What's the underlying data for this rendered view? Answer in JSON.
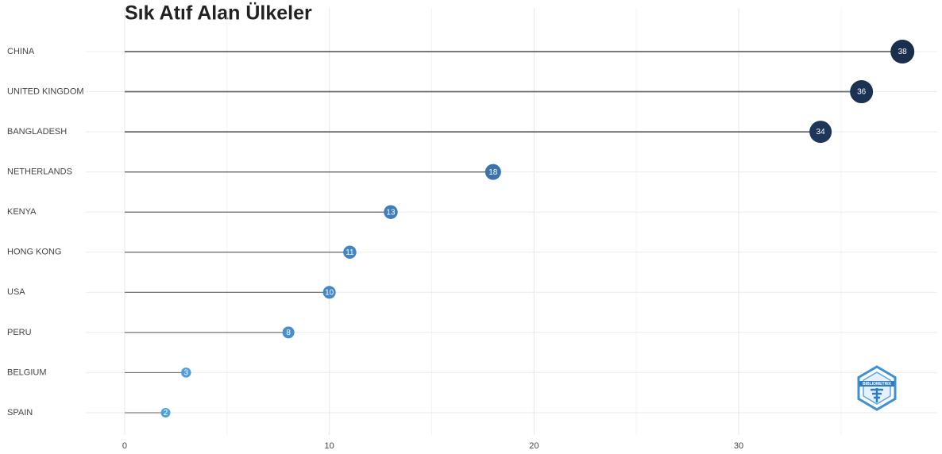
{
  "chart_data": {
    "type": "lollipop",
    "title": "Sık Atıf Alan Ülkeler",
    "categories": [
      "CHINA",
      "UNITED KINGDOM",
      "BANGLADESH",
      "NETHERLANDS",
      "KENYA",
      "HONG KONG",
      "USA",
      "PERU",
      "BELGIUM",
      "SPAIN"
    ],
    "values": [
      38,
      36,
      34,
      18,
      13,
      11,
      10,
      8,
      3,
      2
    ],
    "colors": [
      "#1a2e4d",
      "#1c3253",
      "#1e3759",
      "#3a74aa",
      "#3e7fba",
      "#4285c2",
      "#4488c7",
      "#478ece",
      "#4d9cdb",
      "#50a1df"
    ],
    "stem_color": "#666666",
    "xlim": [
      -1.9,
      39.7
    ],
    "xticks": [
      0,
      10,
      20,
      30
    ],
    "minor_xticks": [
      5,
      15,
      25,
      35
    ],
    "grid": true,
    "logo_text": "BIBLIOMETRIX"
  }
}
